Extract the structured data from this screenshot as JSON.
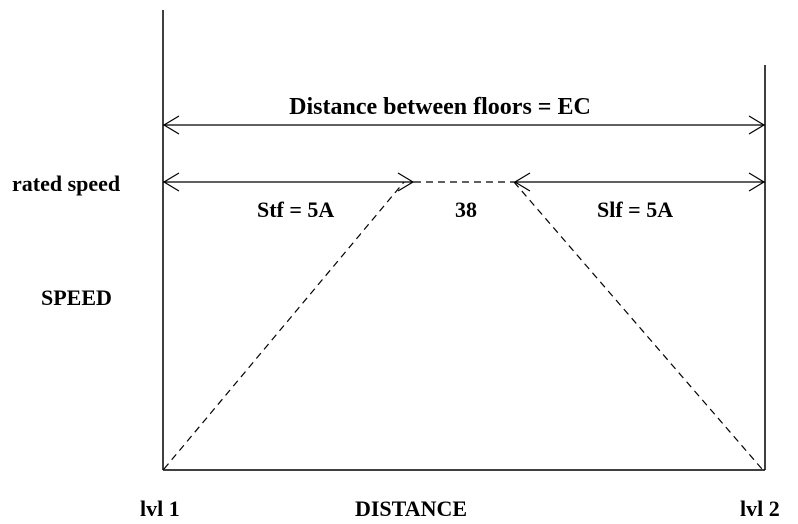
{
  "diagram": {
    "top_span_label": "Distance between floors = EC",
    "rated_speed_label": "rated speed",
    "accel_distance_label": "Stf = 5A",
    "constant_distance_label": "38",
    "decel_distance_label": "Slf = 5A",
    "y_axis_label": "SPEED",
    "x_axis_label": "DISTANCE",
    "start_level_label": "lvl 1",
    "end_level_label": "lvl 2"
  }
}
